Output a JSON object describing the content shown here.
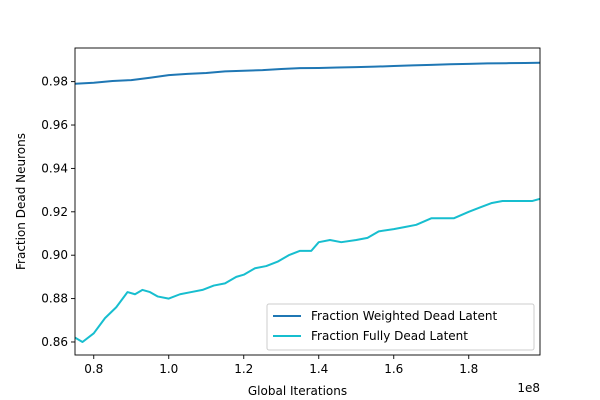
{
  "chart_data": {
    "type": "line",
    "title": "",
    "xlabel": "Global Iterations",
    "ylabel": "Fraction Dead Neurons",
    "x_offset_label": "1e8",
    "xlim": [
      0.75,
      1.99
    ],
    "ylim": [
      0.854,
      0.9955
    ],
    "x_ticks": [
      0.8,
      1.0,
      1.2,
      1.4,
      1.6,
      1.8
    ],
    "x_tick_labels": [
      "0.8",
      "1.0",
      "1.2",
      "1.4",
      "1.6",
      "1.8"
    ],
    "y_ticks": [
      0.86,
      0.88,
      0.9,
      0.92,
      0.94,
      0.96,
      0.98
    ],
    "y_tick_labels": [
      "0.86",
      "0.88",
      "0.90",
      "0.92",
      "0.94",
      "0.96",
      "0.98"
    ],
    "grid": false,
    "legend_position": "lower-right",
    "series": [
      {
        "name": "Fraction Weighted Dead Latent",
        "color": "#1f77b4",
        "x": [
          0.75,
          0.8,
          0.85,
          0.9,
          0.95,
          1.0,
          1.05,
          1.1,
          1.15,
          1.2,
          1.25,
          1.3,
          1.35,
          1.4,
          1.45,
          1.5,
          1.55,
          1.6,
          1.65,
          1.7,
          1.75,
          1.8,
          1.85,
          1.9,
          1.95,
          1.99
        ],
        "y": [
          0.979,
          0.9795,
          0.9803,
          0.9807,
          0.9818,
          0.983,
          0.9836,
          0.984,
          0.9847,
          0.985,
          0.9853,
          0.9858,
          0.9862,
          0.9863,
          0.9865,
          0.9867,
          0.9869,
          0.9872,
          0.9875,
          0.9877,
          0.988,
          0.9882,
          0.9884,
          0.9885,
          0.9886,
          0.9887
        ]
      },
      {
        "name": "Fraction Fully Dead Latent",
        "color": "#17becf",
        "x": [
          0.75,
          0.77,
          0.8,
          0.83,
          0.86,
          0.89,
          0.91,
          0.93,
          0.95,
          0.97,
          1.0,
          1.03,
          1.06,
          1.09,
          1.12,
          1.15,
          1.18,
          1.2,
          1.23,
          1.26,
          1.29,
          1.32,
          1.35,
          1.38,
          1.4,
          1.43,
          1.46,
          1.5,
          1.53,
          1.56,
          1.6,
          1.63,
          1.66,
          1.7,
          1.73,
          1.76,
          1.8,
          1.83,
          1.86,
          1.89,
          1.92,
          1.95,
          1.97,
          1.99
        ],
        "y": [
          0.862,
          0.86,
          0.864,
          0.871,
          0.876,
          0.883,
          0.882,
          0.884,
          0.883,
          0.881,
          0.88,
          0.882,
          0.883,
          0.884,
          0.886,
          0.887,
          0.89,
          0.891,
          0.894,
          0.895,
          0.897,
          0.9,
          0.902,
          0.902,
          0.906,
          0.907,
          0.906,
          0.907,
          0.908,
          0.911,
          0.912,
          0.913,
          0.914,
          0.917,
          0.917,
          0.917,
          0.92,
          0.922,
          0.924,
          0.925,
          0.925,
          0.925,
          0.925,
          0.926
        ]
      }
    ]
  }
}
